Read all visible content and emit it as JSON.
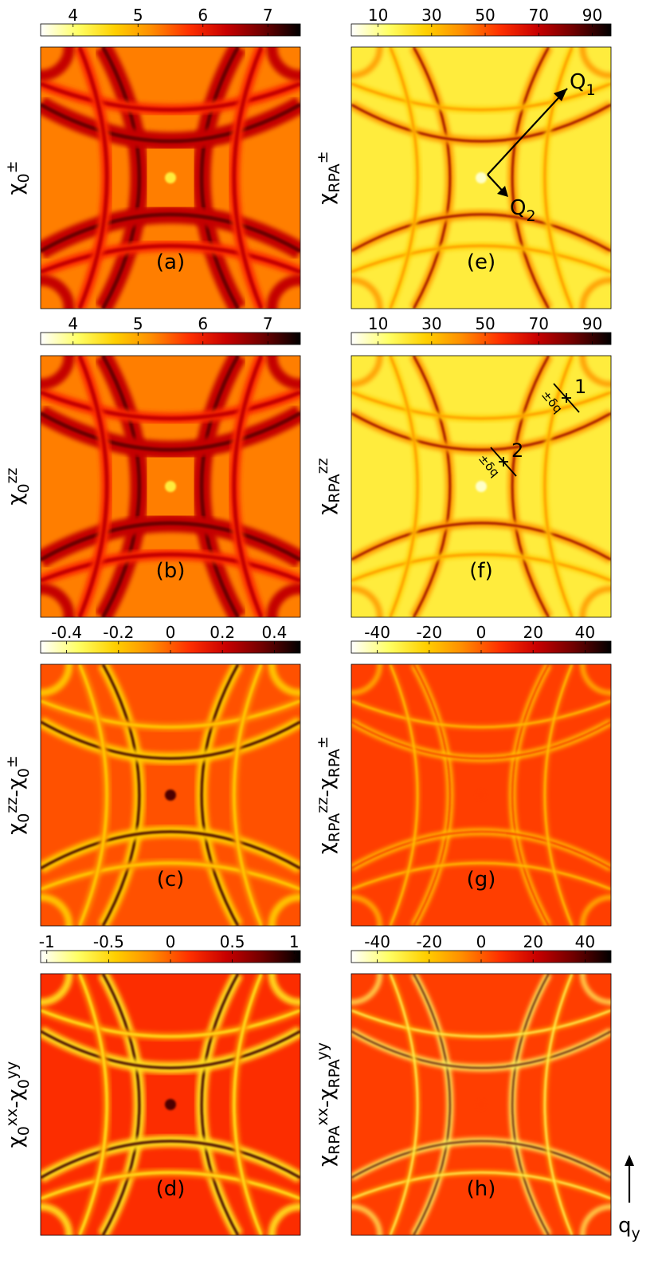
{
  "colormap": [
    "#ffffff",
    "#ffff66",
    "#ffd000",
    "#ff8c00",
    "#ff3000",
    "#c80000",
    "#6e0000",
    "#000000"
  ],
  "ylabel_parts": {
    "chi": "χ",
    "sub0": "0",
    "subRPA": "RPA",
    "pm": "±",
    "zz": "zz",
    "xx": "xx",
    "yy": "yy",
    "minus": "-"
  },
  "axis_arrow_label": {
    "q": "q",
    "sub": "y"
  },
  "chart_data": [
    {
      "id": "a",
      "type": "heatmap",
      "panel_label": "(a)",
      "quantity": "chi0_pm",
      "colorbar_ticks": [
        "4",
        "5",
        "6",
        "7"
      ],
      "tick_values": [
        4,
        5,
        6,
        7
      ],
      "clim": [
        3.5,
        7.5
      ],
      "style": "chi0"
    },
    {
      "id": "b",
      "type": "heatmap",
      "panel_label": "(b)",
      "quantity": "chi0_zz",
      "colorbar_ticks": [
        "4",
        "5",
        "6",
        "7"
      ],
      "tick_values": [
        4,
        5,
        6,
        7
      ],
      "clim": [
        3.5,
        7.5
      ],
      "style": "chi0"
    },
    {
      "id": "c",
      "type": "heatmap",
      "panel_label": "(c)",
      "quantity": "chi0_zz - chi0_pm",
      "colorbar_ticks": [
        "-0.4",
        "-0.2",
        "0",
        "0.2",
        "0.4"
      ],
      "tick_values": [
        -0.4,
        -0.2,
        0,
        0.2,
        0.4
      ],
      "clim": [
        -0.5,
        0.5
      ],
      "style": "diff"
    },
    {
      "id": "d",
      "type": "heatmap",
      "panel_label": "(d)",
      "quantity": "chi0_xx - chi0_yy",
      "colorbar_ticks": [
        "-1",
        "-0.5",
        "0",
        "0.5",
        "1"
      ],
      "tick_values": [
        -1,
        -0.5,
        0,
        0.5,
        1
      ],
      "clim": [
        -1.05,
        1.05
      ],
      "style": "diff2"
    },
    {
      "id": "e",
      "type": "heatmap",
      "panel_label": "(e)",
      "quantity": "chiRPA_pm",
      "colorbar_ticks": [
        "10",
        "30",
        "50",
        "70",
        "90"
      ],
      "tick_values": [
        10,
        30,
        50,
        70,
        90
      ],
      "clim": [
        0,
        97
      ],
      "style": "rpa",
      "annotations": {
        "vector1": "Q",
        "vector1_sub": "1",
        "vector2": "Q",
        "vector2_sub": "2"
      }
    },
    {
      "id": "f",
      "type": "heatmap",
      "panel_label": "(f)",
      "quantity": "chiRPA_zz",
      "colorbar_ticks": [
        "10",
        "30",
        "50",
        "70",
        "90"
      ],
      "tick_values": [
        10,
        30,
        50,
        70,
        90
      ],
      "clim": [
        0,
        97
      ],
      "style": "rpa",
      "annotations": {
        "point1": "1",
        "point2": "2",
        "offset_label": "±δq"
      }
    },
    {
      "id": "g",
      "type": "heatmap",
      "panel_label": "(g)",
      "quantity": "chiRPA_zz - chiRPA_pm",
      "colorbar_ticks": [
        "-40",
        "-20",
        "0",
        "20",
        "40"
      ],
      "tick_values": [
        -40,
        -20,
        0,
        20,
        40
      ],
      "clim": [
        -50,
        50
      ],
      "style": "rpadiff"
    },
    {
      "id": "h",
      "type": "heatmap",
      "panel_label": "(h)",
      "quantity": "chiRPA_xx - chiRPA_yy",
      "colorbar_ticks": [
        "-40",
        "-20",
        "0",
        "20",
        "40"
      ],
      "tick_values": [
        -40,
        -20,
        0,
        20,
        40
      ],
      "clim": [
        -50,
        50
      ],
      "style": "rpadiff2"
    }
  ]
}
